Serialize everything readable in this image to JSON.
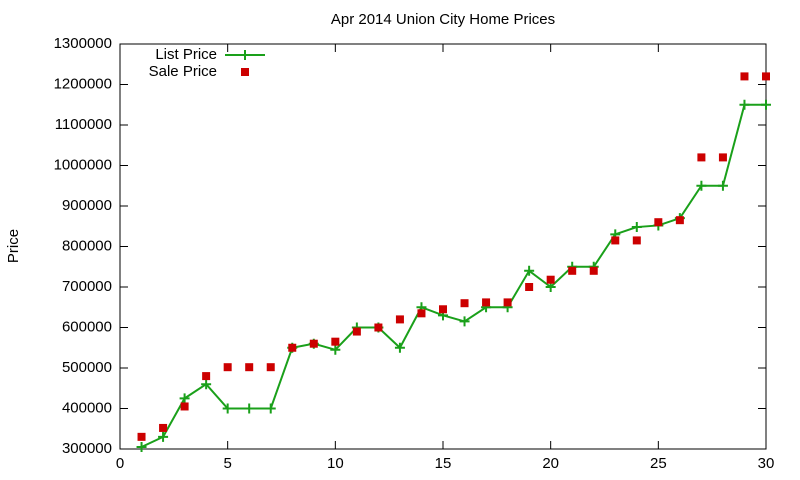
{
  "chart_data": {
    "type": "line",
    "title": "Apr 2014 Union City Home Prices",
    "y_label": "Price",
    "x": [
      1,
      2,
      3,
      4,
      5,
      6,
      7,
      8,
      9,
      10,
      11,
      12,
      13,
      14,
      15,
      16,
      17,
      18,
      19,
      20,
      21,
      22,
      23,
      24,
      25,
      26,
      27,
      28,
      29,
      30
    ],
    "series": [
      {
        "name": "List Price",
        "color": "#1aa01a",
        "style": "line",
        "values": [
          305000,
          330000,
          425000,
          460000,
          400000,
          400000,
          400000,
          550000,
          560000,
          545000,
          600000,
          600000,
          550000,
          650000,
          630000,
          615000,
          650000,
          650000,
          740000,
          700000,
          750000,
          750000,
          830000,
          848000,
          852000,
          870000,
          950000,
          950000,
          1150000,
          1150000
        ]
      },
      {
        "name": "Sale Price",
        "color": "#cc0000",
        "style": "points",
        "values": [
          330000,
          352000,
          405000,
          480000,
          502000,
          502000,
          502000,
          550000,
          560000,
          565000,
          590000,
          600000,
          620000,
          635000,
          645000,
          660000,
          662000,
          662000,
          700000,
          718000,
          740000,
          740000,
          815000,
          815000,
          860000,
          865000,
          1020000,
          1020000,
          1220000,
          1220000
        ]
      }
    ],
    "xlim": [
      0,
      30
    ],
    "xticks": [
      0,
      5,
      10,
      15,
      20,
      25,
      30
    ],
    "ylim": [
      300000,
      1300000
    ],
    "yticks": [
      300000,
      400000,
      500000,
      600000,
      700000,
      800000,
      900000,
      1000000,
      1100000,
      1200000,
      1300000
    ],
    "legend": "top-left"
  }
}
